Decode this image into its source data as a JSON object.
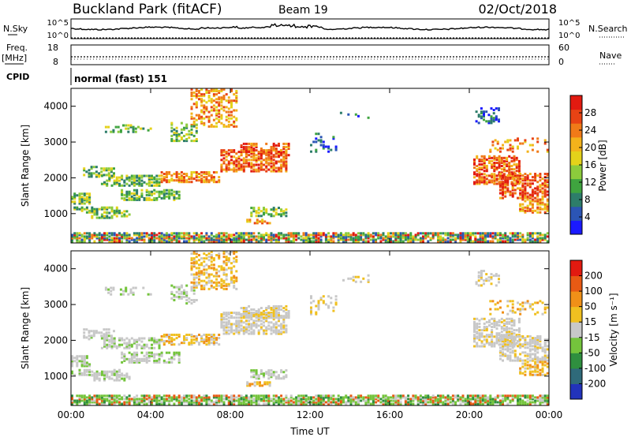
{
  "header": {
    "title": "Buckland Park (fitACF)",
    "beam": "Beam 19",
    "date": "02/Oct/2018"
  },
  "status_panels": {
    "nsky_label": "N.Sky",
    "nsearch_label": "N.Search",
    "freq_label": "Freq.",
    "freq_unit": "[MHz]",
    "nave_label": "Nave",
    "cpid_label": "CPID",
    "cpid_text": "normal (fast) 151",
    "noise_ticks": [
      "10^5",
      "10^0"
    ],
    "freq_ticks": [
      "18",
      "8"
    ],
    "nave_ticks": [
      "60",
      "0"
    ]
  },
  "chart_data": [
    {
      "type": "heatmap",
      "name": "power",
      "ylabel": "Slant Range [km]",
      "xlabel": "",
      "x_ticks": [
        "00:00",
        "04:00",
        "08:00",
        "12:00",
        "16:00",
        "20:00",
        "00:00"
      ],
      "y_ticks": [
        "1000",
        "2000",
        "3000",
        "4000"
      ],
      "ylim": [
        180,
        4500
      ],
      "colorbar": {
        "label": "Power [dB]",
        "ticks": [
          "4",
          "8",
          "12",
          "16",
          "20",
          "24",
          "28"
        ],
        "range": [
          0,
          32
        ],
        "colors": [
          "#1a1aff",
          "#2b55b5",
          "#2d7d6a",
          "#3fa43f",
          "#8ccb3c",
          "#e4d21a",
          "#f3b21b",
          "#f07a18",
          "#e84314",
          "#e21a10"
        ]
      },
      "bands": [
        {
          "t0": 0.0,
          "t1": 23.9,
          "r0": 190,
          "r1": 440,
          "mix": "mix",
          "density": 0.75
        },
        {
          "t0": 0.0,
          "t1": 1.0,
          "r0": 1250,
          "r1": 1550,
          "mix": "green",
          "density": 0.7
        },
        {
          "t0": 0.0,
          "t1": 2.5,
          "r0": 1000,
          "r1": 1150,
          "mix": "green",
          "density": 0.6
        },
        {
          "t0": 0.6,
          "t1": 2.2,
          "r0": 2000,
          "r1": 2300,
          "mix": "green",
          "density": 0.45
        },
        {
          "t0": 1.5,
          "t1": 4.5,
          "r0": 1750,
          "r1": 2050,
          "mix": "green",
          "density": 0.6
        },
        {
          "t0": 4.5,
          "t1": 7.5,
          "r0": 1850,
          "r1": 2150,
          "mix": "orange",
          "density": 0.6
        },
        {
          "t0": 7.5,
          "t1": 10.8,
          "r0": 2150,
          "r1": 2750,
          "mix": "red",
          "density": 0.6
        },
        {
          "t0": 8.5,
          "t1": 10.9,
          "r0": 2600,
          "r1": 2950,
          "mix": "red",
          "density": 0.55
        },
        {
          "t0": 2.5,
          "t1": 5.5,
          "r0": 1350,
          "r1": 1650,
          "mix": "green",
          "density": 0.55
        },
        {
          "t0": 1.0,
          "t1": 3.0,
          "r0": 850,
          "r1": 1050,
          "mix": "green",
          "density": 0.4
        },
        {
          "t0": 9.0,
          "t1": 10.8,
          "r0": 900,
          "r1": 1150,
          "mix": "green",
          "density": 0.55
        },
        {
          "t0": 8.8,
          "t1": 10.0,
          "r0": 700,
          "r1": 800,
          "mix": "orange",
          "density": 0.55
        },
        {
          "t0": 6.0,
          "t1": 8.3,
          "r0": 3400,
          "r1": 4450,
          "mix": "orange",
          "density": 0.45
        },
        {
          "t0": 5.0,
          "t1": 6.3,
          "r0": 3000,
          "r1": 3500,
          "mix": "green",
          "density": 0.35
        },
        {
          "t0": 1.7,
          "t1": 4.0,
          "r0": 3250,
          "r1": 3450,
          "mix": "green",
          "density": 0.25
        },
        {
          "t0": 12.0,
          "t1": 13.3,
          "r0": 2700,
          "r1": 3200,
          "mix": "blue",
          "density": 0.25
        },
        {
          "t0": 13.5,
          "t1": 15.0,
          "r0": 3600,
          "r1": 3800,
          "mix": "blue",
          "density": 0.2
        },
        {
          "t0": 20.3,
          "t1": 21.5,
          "r0": 3500,
          "r1": 3950,
          "mix": "blue",
          "density": 0.35
        },
        {
          "t0": 20.2,
          "t1": 22.5,
          "r0": 1800,
          "r1": 2600,
          "mix": "red",
          "density": 0.6
        },
        {
          "t0": 21.5,
          "t1": 24.0,
          "r0": 1400,
          "r1": 2100,
          "mix": "red",
          "density": 0.55
        },
        {
          "t0": 22.5,
          "t1": 24.0,
          "r0": 1000,
          "r1": 1400,
          "mix": "orange",
          "density": 0.5
        },
        {
          "t0": 21.0,
          "t1": 24.0,
          "r0": 2700,
          "r1": 3100,
          "mix": "orange",
          "density": 0.25
        }
      ]
    },
    {
      "type": "heatmap",
      "name": "velocity",
      "ylabel": "Slant Range [km]",
      "xlabel": "Time UT",
      "x_ticks": [
        "00:00",
        "04:00",
        "08:00",
        "12:00",
        "16:00",
        "20:00",
        "00:00"
      ],
      "y_ticks": [
        "1000",
        "2000",
        "3000",
        "4000"
      ],
      "ylim": [
        180,
        4500
      ],
      "colorbar": {
        "label": "Velocity [m s⁻¹]",
        "ticks": [
          "200",
          "100",
          "50",
          "15",
          "-15",
          "-50",
          "-100",
          "-200"
        ],
        "colors": [
          "#2233bb",
          "#2f6a7a",
          "#2f8f3f",
          "#74c43c",
          "#c8c8c8",
          "#f0c020",
          "#f09018",
          "#e85a14",
          "#e21a10"
        ]
      }
    }
  ]
}
